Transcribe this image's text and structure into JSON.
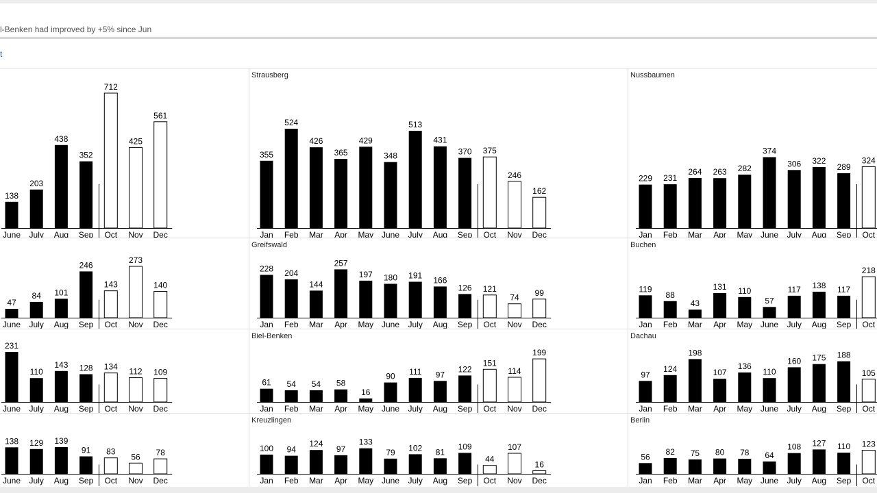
{
  "header": {
    "headline": "l-Benken had improved by +5% since Jun",
    "link_text": "t"
  },
  "colors": {
    "actual": "#000000",
    "forecast": "#ffffff",
    "grid": "#dddddd",
    "link": "#1a5fb4"
  },
  "chart_data": [
    {
      "type": "bar",
      "title": "",
      "categories": [
        "June",
        "July",
        "Aug",
        "Sep",
        "Oct",
        "Nov",
        "Dec"
      ],
      "values": [
        138,
        203,
        438,
        352,
        712,
        425,
        561
      ],
      "forecast_start": "Oct",
      "ylim": [
        0,
        712
      ]
    },
    {
      "type": "bar",
      "title": "Strausberg",
      "categories": [
        "Jan",
        "Feb",
        "Mar",
        "Apr",
        "May",
        "June",
        "July",
        "Aug",
        "Sep",
        "Oct",
        "Nov",
        "Dec"
      ],
      "values": [
        355,
        524,
        426,
        365,
        429,
        348,
        513,
        431,
        370,
        375,
        246,
        162
      ],
      "forecast_start": "Oct",
      "ylim": [
        0,
        712
      ]
    },
    {
      "type": "bar",
      "title": "Nussbaumen",
      "categories": [
        "Jan",
        "Feb",
        "Mar",
        "Apr",
        "May",
        "June",
        "July",
        "Aug",
        "Sep",
        "Oct"
      ],
      "values": [
        229,
        231,
        264,
        263,
        282,
        374,
        306,
        322,
        289,
        324
      ],
      "forecast_start": "Oct",
      "ylim": [
        0,
        712
      ]
    },
    {
      "type": "bar",
      "title": "",
      "categories": [
        "June",
        "July",
        "Aug",
        "Sep",
        "Oct",
        "Nov",
        "Dec"
      ],
      "values": [
        47,
        84,
        101,
        246,
        143,
        273,
        140
      ],
      "forecast_start": "Oct",
      "ylim": [
        0,
        273
      ]
    },
    {
      "type": "bar",
      "title": "Greifswald",
      "categories": [
        "Jan",
        "Feb",
        "Mar",
        "Apr",
        "May",
        "June",
        "July",
        "Aug",
        "Sep",
        "Oct",
        "Nov",
        "Dec"
      ],
      "values": [
        228,
        204,
        144,
        257,
        197,
        180,
        191,
        166,
        126,
        121,
        74,
        99
      ],
      "forecast_start": "Oct",
      "ylim": [
        0,
        273
      ]
    },
    {
      "type": "bar",
      "title": "Buchen",
      "categories": [
        "Jan",
        "Feb",
        "Mar",
        "Apr",
        "May",
        "June",
        "July",
        "Aug",
        "Sep",
        "Oct"
      ],
      "values": [
        119,
        88,
        43,
        131,
        110,
        57,
        117,
        138,
        117,
        218
      ],
      "forecast_start": "Oct",
      "ylim": [
        0,
        273
      ]
    },
    {
      "type": "bar",
      "title": "",
      "categories": [
        "June",
        "July",
        "Aug",
        "Sep",
        "Oct",
        "Nov",
        "Dec"
      ],
      "values": [
        231,
        110,
        143,
        128,
        134,
        112,
        109
      ],
      "forecast_start": "Oct",
      "ylim": [
        0,
        231
      ]
    },
    {
      "type": "bar",
      "title": "Biel-Benken",
      "categories": [
        "Jan",
        "Feb",
        "Mar",
        "Apr",
        "May",
        "June",
        "July",
        "Aug",
        "Sep",
        "Oct",
        "Nov",
        "Dec"
      ],
      "values": [
        61,
        54,
        54,
        58,
        16,
        90,
        111,
        97,
        122,
        151,
        114,
        199
      ],
      "forecast_start": "Oct",
      "ylim": [
        0,
        231
      ]
    },
    {
      "type": "bar",
      "title": "Dachau",
      "categories": [
        "Jan",
        "Feb",
        "Mar",
        "Apr",
        "May",
        "June",
        "July",
        "Aug",
        "Sep",
        "Oct"
      ],
      "values": [
        97,
        124,
        198,
        107,
        136,
        110,
        160,
        175,
        188,
        105
      ],
      "forecast_start": "Oct",
      "ylim": [
        0,
        231
      ]
    },
    {
      "type": "bar",
      "title": "",
      "categories": [
        "June",
        "July",
        "Aug",
        "Sep",
        "Oct",
        "Nov",
        "Dec"
      ],
      "values": [
        138,
        129,
        139,
        91,
        83,
        56,
        78
      ],
      "forecast_start": "Oct",
      "ylim": [
        0,
        139
      ]
    },
    {
      "type": "bar",
      "title": "Kreuzlingen",
      "categories": [
        "Jan",
        "Feb",
        "Mar",
        "Apr",
        "May",
        "June",
        "July",
        "Aug",
        "Sep",
        "Oct",
        "Nov",
        "Dec"
      ],
      "values": [
        100,
        94,
        124,
        97,
        133,
        79,
        102,
        81,
        109,
        44,
        107,
        16
      ],
      "forecast_start": "Oct",
      "ylim": [
        0,
        139
      ]
    },
    {
      "type": "bar",
      "title": "Berlin",
      "categories": [
        "Jan",
        "Feb",
        "Mar",
        "Apr",
        "May",
        "June",
        "July",
        "Aug",
        "Sep",
        "Oct"
      ],
      "values": [
        56,
        82,
        75,
        80,
        78,
        64,
        108,
        127,
        110,
        123
      ],
      "forecast_start": "Oct",
      "ylim": [
        0,
        139
      ]
    }
  ]
}
